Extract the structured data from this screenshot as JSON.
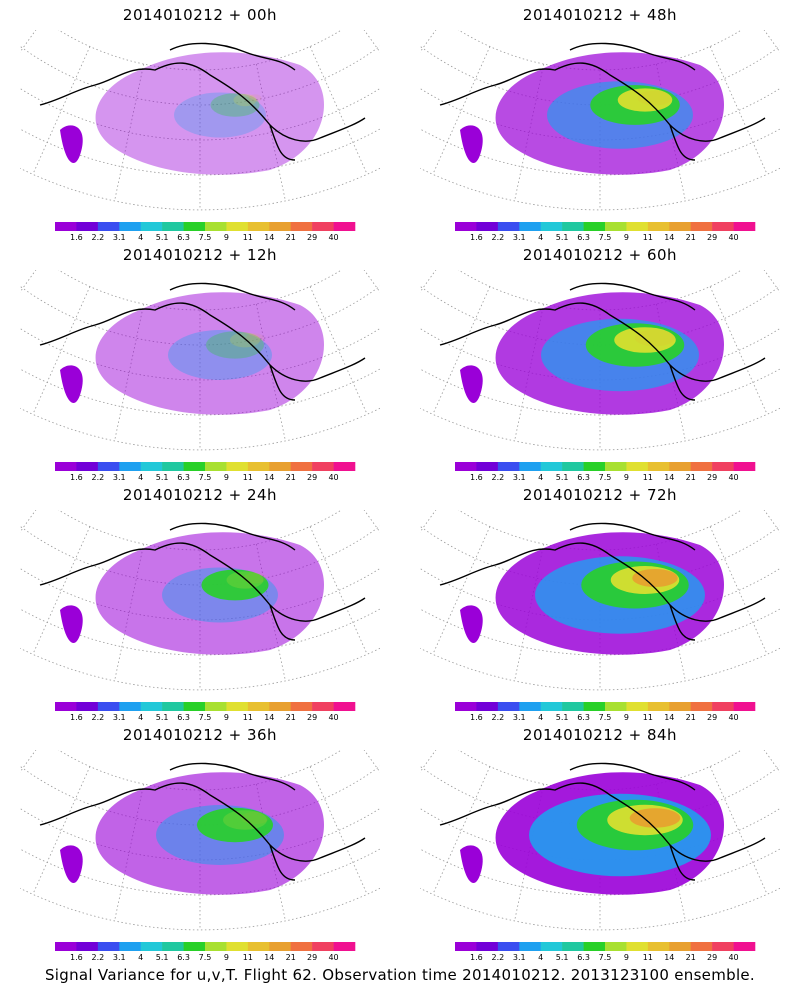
{
  "panels": [
    {
      "title": "2014010212 + 00h",
      "intensity": 0.1
    },
    {
      "title": "2014010212 + 48h",
      "intensity": 0.55
    },
    {
      "title": "2014010212 + 12h",
      "intensity": 0.2
    },
    {
      "title": "2014010212 + 60h",
      "intensity": 0.65
    },
    {
      "title": "2014010212 + 24h",
      "intensity": 0.3
    },
    {
      "title": "2014010212 + 72h",
      "intensity": 0.75
    },
    {
      "title": "2014010212 + 36h",
      "intensity": 0.4
    },
    {
      "title": "2014010212 + 84h",
      "intensity": 0.85
    }
  ],
  "colorbar": {
    "labels": [
      "1.6",
      "2.2",
      "3.1",
      "4",
      "5.1",
      "6.3",
      "7.5",
      "9",
      "11",
      "14",
      "21",
      "29",
      "40"
    ],
    "colors": [
      "#9a00d8",
      "#7200d8",
      "#3a4ef0",
      "#1ea0f0",
      "#22c8d8",
      "#20c8a0",
      "#28d028",
      "#a8e030",
      "#e0e030",
      "#e8c030",
      "#e8a030",
      "#f07040",
      "#f04060",
      "#f01090"
    ]
  },
  "map_colors": {
    "land": "#000000",
    "grid": "#9a9a9a"
  },
  "footer": "Signal Variance for u,v,T. Flight 62. Observation time 2014010212. 2013123100 ensemble."
}
